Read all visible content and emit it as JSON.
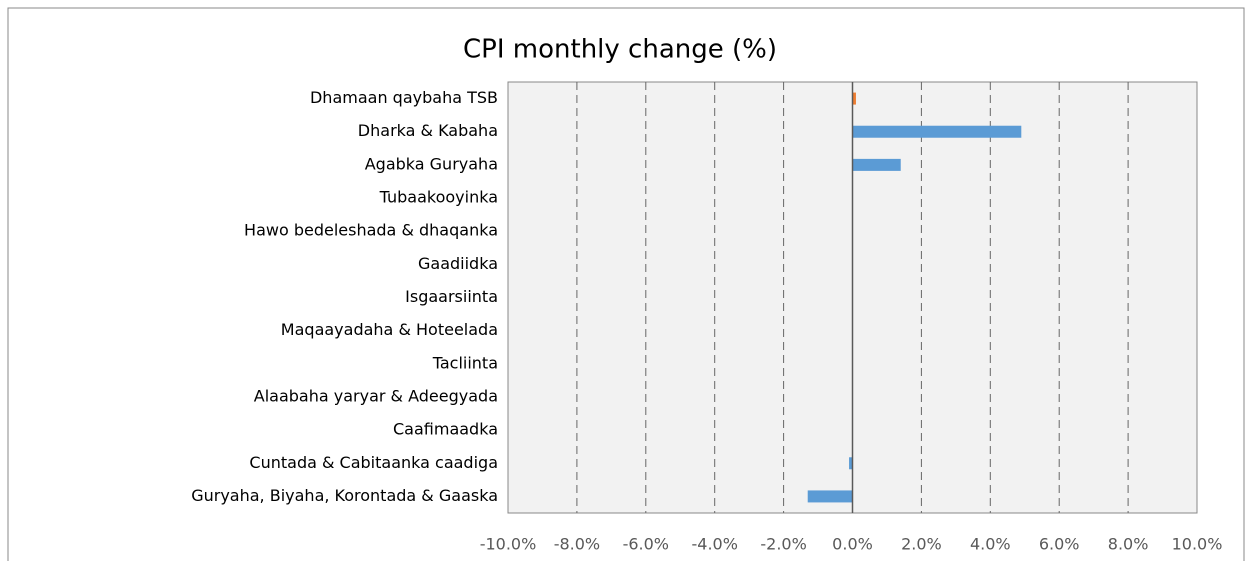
{
  "chart_data": {
    "type": "bar",
    "orientation": "horizontal",
    "title": "CPI monthly change (%)",
    "categories": [
      "Dhamaan qaybaha TSB",
      "Dharka & Kabaha",
      "Agabka Guryaha",
      "Tubaakooyinka",
      "Hawo bedeleshada & dhaqanka",
      "Gaadiidka",
      "Isgaarsiinta",
      "Maqaayadaha & Hoteelada",
      "Tacliinta",
      "Alaabaha yaryar & Adeegyada",
      "Caafimaadka",
      "Cuntada & Cabitaanka caadiga",
      "Guryaha, Biyaha, Korontada & Gaaska"
    ],
    "values": [
      0.1,
      4.9,
      1.4,
      0,
      0,
      0,
      0,
      0,
      0,
      0,
      0,
      -0.1,
      -1.3
    ],
    "colors": [
      "#ed7d31",
      "#5b9bd5",
      "#5b9bd5",
      "#5b9bd5",
      "#5b9bd5",
      "#5b9bd5",
      "#5b9bd5",
      "#5b9bd5",
      "#5b9bd5",
      "#5b9bd5",
      "#5b9bd5",
      "#5b9bd5",
      "#5b9bd5"
    ],
    "xlim": [
      -10,
      10
    ],
    "xticks": [
      {
        "value": -10,
        "label": "-10.0%"
      },
      {
        "value": -8,
        "label": "-8.0%"
      },
      {
        "value": -6,
        "label": "-6.0%"
      },
      {
        "value": -4,
        "label": "-4.0%"
      },
      {
        "value": -2,
        "label": "-2.0%"
      },
      {
        "value": 0,
        "label": "0.0%"
      },
      {
        "value": 2,
        "label": "2.0%"
      },
      {
        "value": 4,
        "label": "4.0%"
      },
      {
        "value": 6,
        "label": "6.0%"
      },
      {
        "value": 8,
        "label": "8.0%"
      },
      {
        "value": 10,
        "label": "10.0%"
      }
    ],
    "grid": true
  }
}
